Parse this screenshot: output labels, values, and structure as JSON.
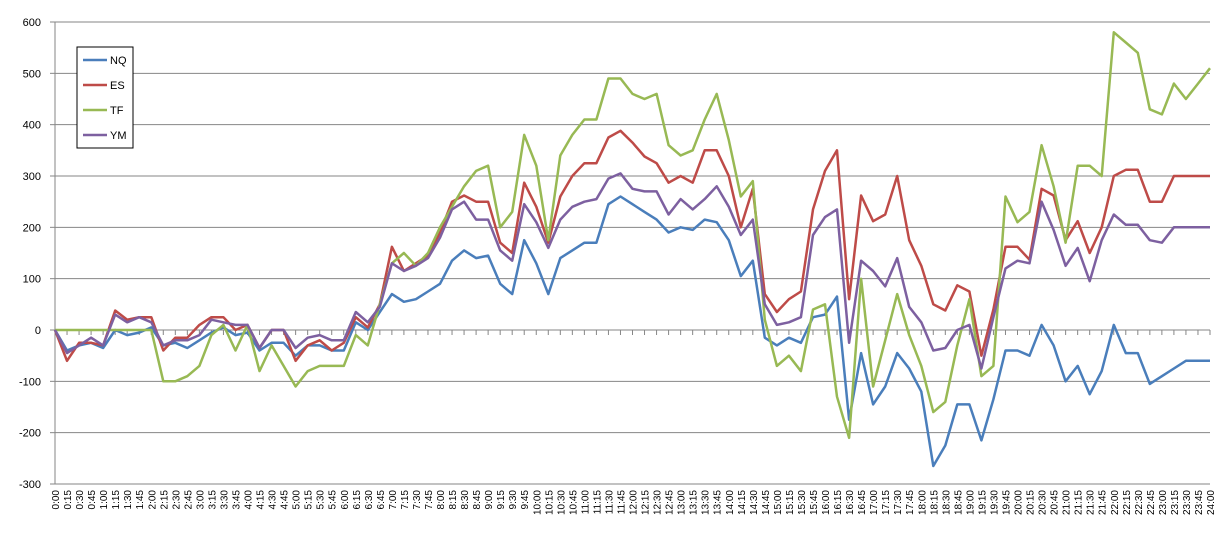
{
  "chart_data": {
    "type": "line",
    "categories": [
      "0:00",
      "0:15",
      "0:30",
      "0:45",
      "1:00",
      "1:15",
      "1:30",
      "1:45",
      "2:00",
      "2:15",
      "2:30",
      "2:45",
      "3:00",
      "3:15",
      "3:30",
      "3:45",
      "4:00",
      "4:15",
      "4:30",
      "4:45",
      "5:00",
      "5:15",
      "5:30",
      "5:45",
      "6:00",
      "6:15",
      "6:30",
      "6:45",
      "7:00",
      "7:15",
      "7:30",
      "7:45",
      "8:00",
      "8:15",
      "8:30",
      "8:45",
      "9:00",
      "9:15",
      "9:30",
      "9:45",
      "10:00",
      "10:15",
      "10:30",
      "10:45",
      "11:00",
      "11:15",
      "11:30",
      "11:45",
      "12:00",
      "12:15",
      "12:30",
      "12:45",
      "13:00",
      "13:15",
      "13:30",
      "13:45",
      "14:00",
      "14:15",
      "14:30",
      "14:45",
      "15:00",
      "15:15",
      "15:30",
      "15:45",
      "16:00",
      "16:15",
      "16:30",
      "16:45",
      "17:00",
      "17:15",
      "17:30",
      "17:45",
      "18:00",
      "18:15",
      "18:30",
      "18:45",
      "19:00",
      "19:15",
      "19:30",
      "19:45",
      "20:00",
      "20:15",
      "20:30",
      "20:45",
      "21:00",
      "21:15",
      "21:30",
      "21:45",
      "22:00",
      "22:15",
      "22:30",
      "22:45",
      "23:00",
      "23:15",
      "23:30",
      "23:45",
      "24:00"
    ],
    "series": [
      {
        "name": "NQ",
        "color": "#4a7ebb",
        "values": [
          0,
          -40,
          -30,
          -25,
          -35,
          0,
          -10,
          -5,
          5,
          -30,
          -25,
          -35,
          -20,
          -5,
          5,
          -10,
          -5,
          -40,
          -25,
          -25,
          -50,
          -30,
          -30,
          -40,
          -40,
          15,
          0,
          35,
          70,
          55,
          60,
          75,
          90,
          135,
          155,
          140,
          145,
          90,
          70,
          175,
          130,
          70,
          140,
          155,
          170,
          170,
          245,
          260,
          245,
          230,
          215,
          190,
          200,
          195,
          215,
          210,
          175,
          105,
          135,
          -15,
          -30,
          -15,
          -25,
          25,
          30,
          65,
          -175,
          -45,
          -145,
          -110,
          -45,
          -75,
          -120,
          -265,
          -225,
          -145,
          -145,
          -215,
          -135,
          -40,
          -40,
          -50,
          10,
          -30,
          -100,
          -70,
          -125,
          -80,
          10,
          -45,
          -45,
          -105,
          -90,
          -75,
          -60,
          -60,
          -60
        ]
      },
      {
        "name": "ES",
        "color": "#be4b48",
        "values": [
          0,
          -60,
          -25,
          -25,
          -30,
          38,
          20,
          25,
          25,
          -40,
          -15,
          -15,
          10,
          25,
          25,
          0,
          10,
          -35,
          0,
          0,
          -60,
          -30,
          -20,
          -40,
          -25,
          25,
          5,
          50,
          162,
          115,
          130,
          145,
          190,
          250,
          262,
          250,
          250,
          170,
          150,
          287,
          240,
          170,
          260,
          300,
          325,
          325,
          375,
          388,
          365,
          338,
          325,
          287,
          300,
          287,
          350,
          350,
          300,
          200,
          275,
          70,
          35,
          60,
          75,
          235,
          310,
          350,
          60,
          262,
          212,
          225,
          300,
          175,
          125,
          50,
          38,
          87,
          75,
          -50,
          40,
          162,
          162,
          137,
          275,
          262,
          175,
          212,
          150,
          200,
          300,
          312,
          312,
          250,
          250,
          300,
          300,
          300,
          300
        ]
      },
      {
        "name": "TF",
        "color": "#98b954",
        "values": [
          0,
          0,
          0,
          0,
          0,
          0,
          0,
          0,
          0,
          -100,
          -100,
          -90,
          -70,
          -10,
          10,
          -40,
          10,
          -80,
          -30,
          -70,
          -110,
          -80,
          -70,
          -70,
          -70,
          -10,
          -30,
          50,
          130,
          150,
          125,
          150,
          200,
          240,
          280,
          310,
          320,
          200,
          230,
          380,
          320,
          175,
          340,
          380,
          410,
          410,
          490,
          490,
          460,
          450,
          460,
          360,
          340,
          350,
          410,
          460,
          370,
          260,
          290,
          20,
          -70,
          -50,
          -80,
          40,
          50,
          -130,
          -210,
          100,
          -110,
          -20,
          70,
          -10,
          -70,
          -160,
          -140,
          -30,
          60,
          -90,
          -70,
          260,
          210,
          230,
          360,
          280,
          170,
          320,
          320,
          300,
          580,
          560,
          540,
          430,
          420,
          480,
          450,
          480,
          510
        ]
      },
      {
        "name": "YM",
        "color": "#7d60a0",
        "values": [
          0,
          -45,
          -30,
          -15,
          -30,
          30,
          15,
          25,
          15,
          -30,
          -20,
          -20,
          -10,
          20,
          15,
          10,
          10,
          -35,
          0,
          0,
          -35,
          -15,
          -10,
          -20,
          -20,
          35,
          15,
          45,
          130,
          115,
          125,
          140,
          180,
          235,
          250,
          215,
          215,
          155,
          135,
          245,
          210,
          160,
          215,
          240,
          250,
          255,
          295,
          305,
          275,
          270,
          270,
          225,
          255,
          235,
          255,
          280,
          240,
          185,
          215,
          50,
          10,
          15,
          25,
          185,
          220,
          235,
          -25,
          135,
          115,
          85,
          140,
          45,
          15,
          -40,
          -35,
          0,
          10,
          -75,
          25,
          120,
          135,
          130,
          250,
          195,
          125,
          160,
          95,
          175,
          225,
          205,
          205,
          175,
          170,
          200,
          200,
          200,
          200
        ]
      }
    ],
    "ylim": [
      -300,
      600
    ],
    "yticks": [
      -300,
      -200,
      -100,
      0,
      100,
      200,
      300,
      400,
      500,
      600
    ],
    "grid": true,
    "legend": "upper left"
  }
}
